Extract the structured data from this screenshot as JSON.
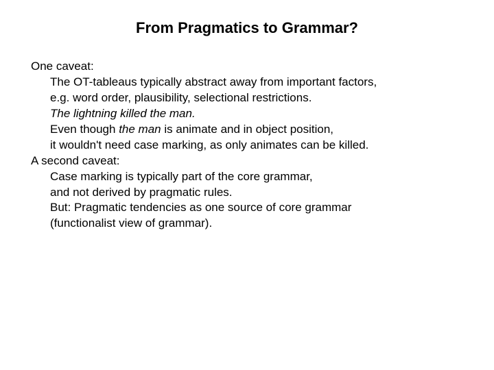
{
  "title": "From Pragmatics to Grammar?",
  "lines": {
    "l0": "One caveat:",
    "l1": "The OT-tableaus typically abstract away from important factors,",
    "l2": "e.g. word order, plausibility, selectional restrictions.",
    "l3": "The lightning killed the man.",
    "l4a": "Even though ",
    "l4b": "the man",
    "l4c": " is animate and in object position,",
    "l5": "it wouldn't need case marking, as only animates can be killed.",
    "l6": "A second caveat:",
    "l7": "Case marking is typically part of the core grammar,",
    "l8": "and not derived by pragmatic rules.",
    "l9": "But: Pragmatic tendencies as one source of core grammar",
    "l10": "(functionalist view of grammar)."
  },
  "colors": {
    "background": "#ffffff",
    "text": "#000000"
  },
  "typography": {
    "title_fontsize": 22,
    "body_fontsize": 17,
    "font_family": "Arial"
  }
}
